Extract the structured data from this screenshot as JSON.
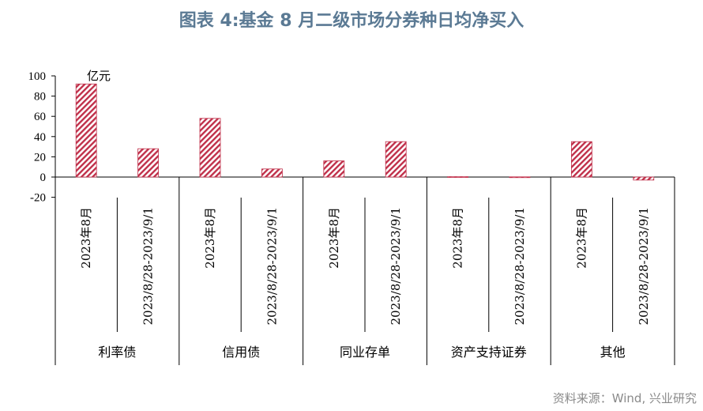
{
  "title": "图表 4:基金 8 月二级市场分券种日均净买入",
  "source": "资料来源：Wind, 兴业研究",
  "colors": {
    "bar": "#c0304a",
    "title": "#5b7a94",
    "source": "#8a8a8a"
  },
  "chart_data": {
    "type": "bar",
    "unit": "亿元",
    "ylim": [
      -20,
      100
    ],
    "yticks": [
      "-20",
      "0",
      "20",
      "40",
      "60",
      "80",
      "100"
    ],
    "grid": false,
    "categories": [
      "2023年8月",
      "2023/8/28-2023/9/1"
    ],
    "groups": [
      "利率债",
      "信用债",
      "同业存单",
      "资产支持证券",
      "其他"
    ],
    "values": [
      {
        "group": "利率债",
        "category": "2023年8月",
        "value": 92
      },
      {
        "group": "利率债",
        "category": "2023/8/28-2023/9/1",
        "value": 28
      },
      {
        "group": "信用债",
        "category": "2023年8月",
        "value": 58
      },
      {
        "group": "信用债",
        "category": "2023/8/28-2023/9/1",
        "value": 8
      },
      {
        "group": "同业存单",
        "category": "2023年8月",
        "value": 16
      },
      {
        "group": "同业存单",
        "category": "2023/8/28-2023/9/1",
        "value": 35
      },
      {
        "group": "资产支持证券",
        "category": "2023年8月",
        "value": 0.4
      },
      {
        "group": "资产支持证券",
        "category": "2023/8/28-2023/9/1",
        "value": 0.2
      },
      {
        "group": "其他",
        "category": "2023年8月",
        "value": 35
      },
      {
        "group": "其他",
        "category": "2023/8/28-2023/9/1",
        "value": -3
      }
    ]
  }
}
